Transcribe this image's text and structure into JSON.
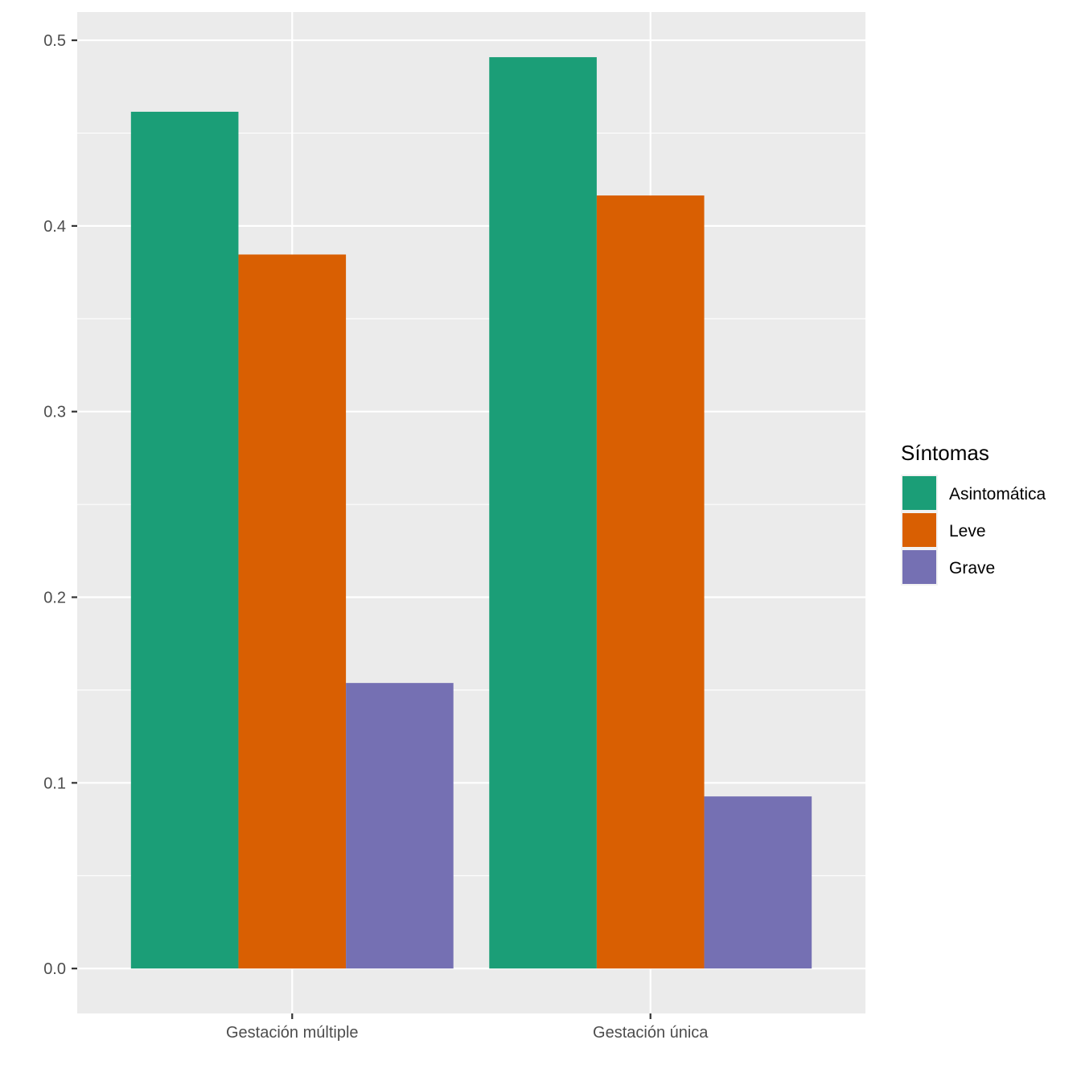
{
  "chart_data": {
    "type": "bar",
    "title": "",
    "xlabel": "",
    "ylabel": "",
    "categories": [
      "Gestación múltiple",
      "Gestación única"
    ],
    "series": [
      {
        "name": "Asintomática",
        "color": "#1B9E77",
        "values": [
          0.4615,
          0.4909
        ]
      },
      {
        "name": "Leve",
        "color": "#D95F02",
        "values": [
          0.3846,
          0.4164
        ]
      },
      {
        "name": "Grave",
        "color": "#7570B3",
        "values": [
          0.1538,
          0.0927
        ]
      }
    ],
    "ylim": [
      -0.0242,
      0.5152
    ],
    "yticks": [
      "0.0",
      "0.1",
      "0.2",
      "0.3",
      "0.4",
      "0.5"
    ],
    "grid": true,
    "legend": {
      "title": "Síntomas",
      "position": "right"
    },
    "panel_background": "#EBEBEB",
    "grid_color": "#FFFFFF"
  }
}
